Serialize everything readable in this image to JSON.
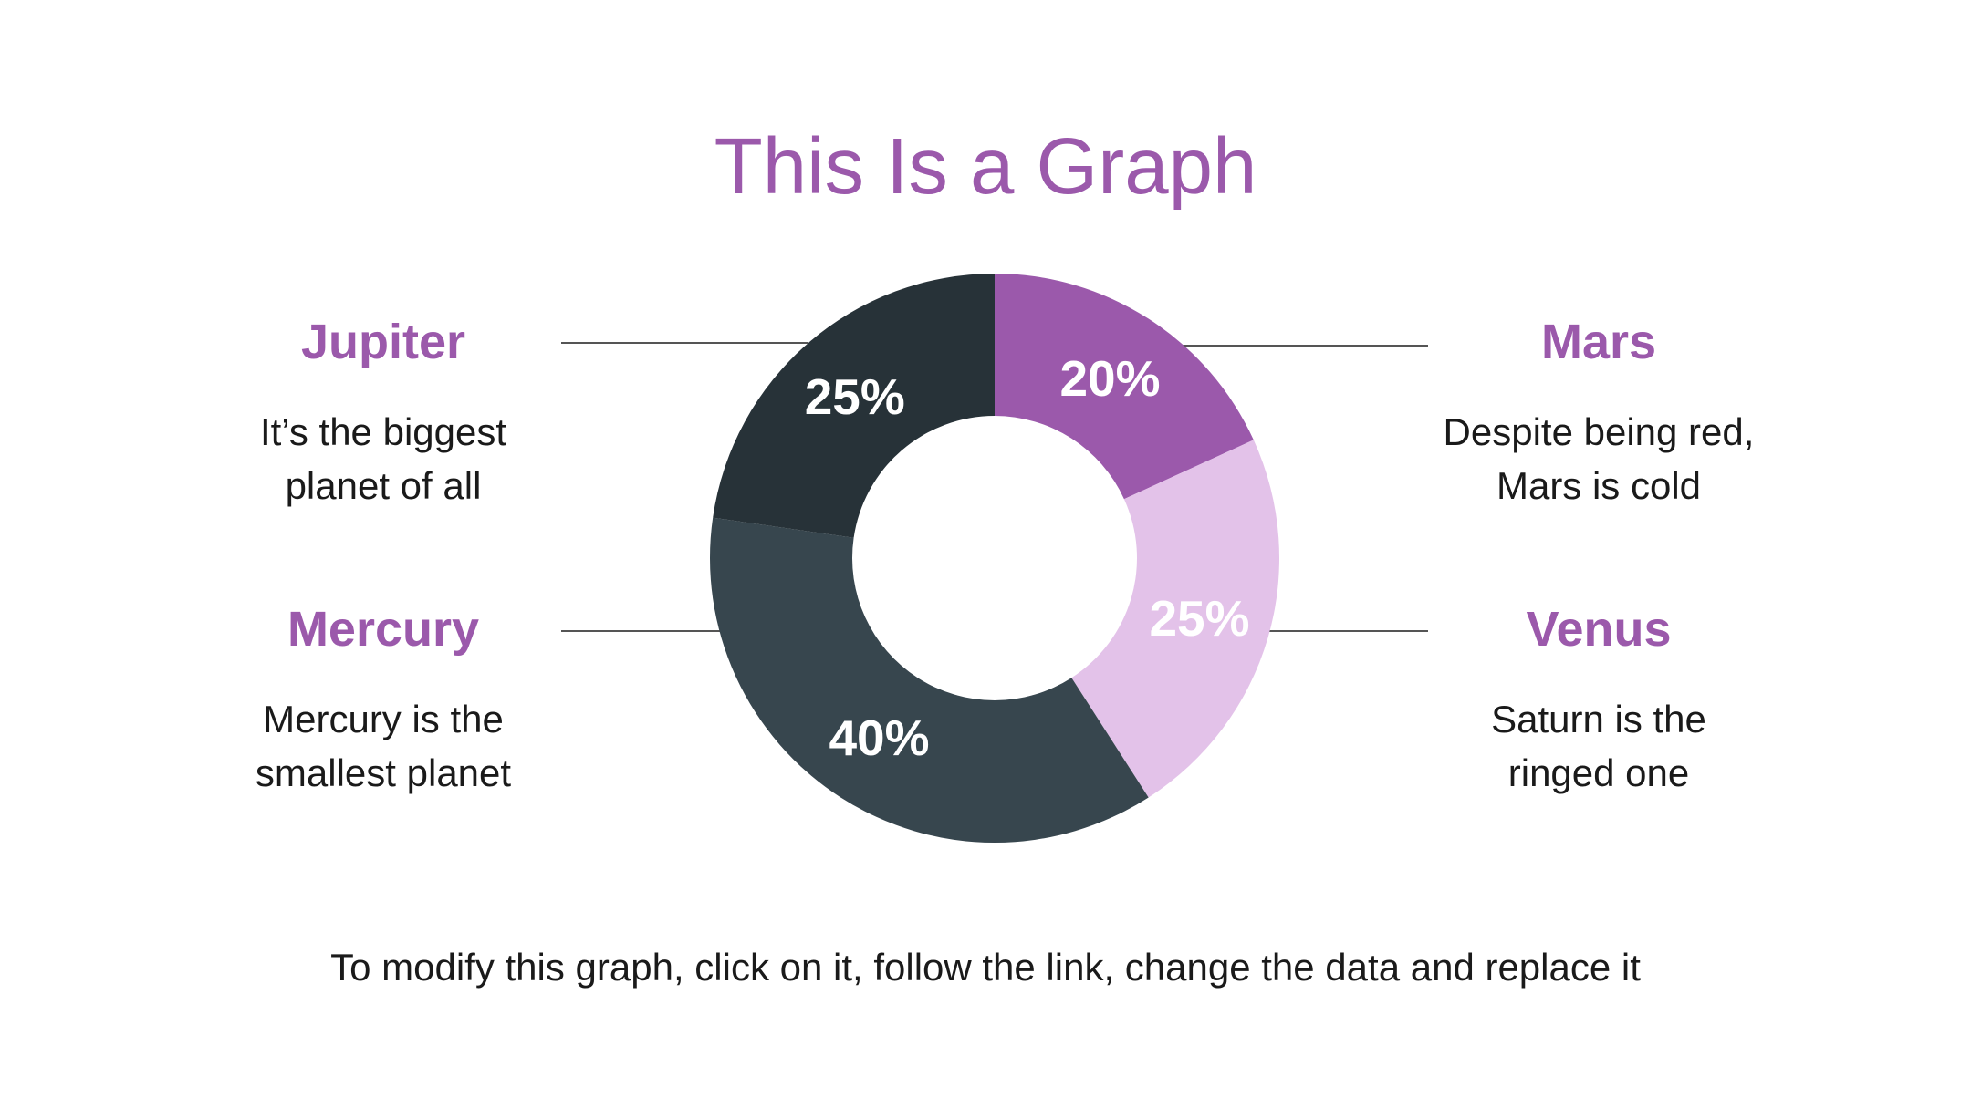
{
  "title": "This Is a Graph",
  "footer": "To modify this graph, click on it, follow the link, change the data and replace it",
  "planets": {
    "jupiter": {
      "name": "Jupiter",
      "desc_line1": "It’s the biggest",
      "desc_line2": "planet of all"
    },
    "mercury": {
      "name": "Mercury",
      "desc_line1": "Mercury is the",
      "desc_line2": "smallest planet"
    },
    "mars": {
      "name": "Mars",
      "desc_line1": "Despite being red,",
      "desc_line2": "Mars is cold"
    },
    "venus": {
      "name": "Venus",
      "desc_line1": "Saturn is the",
      "desc_line2": "ringed one"
    }
  },
  "colors": {
    "accent": "#9b59ab",
    "leader": "#555555"
  },
  "chart_data": {
    "type": "pie",
    "variant": "donut",
    "title": "This Is a Graph",
    "series": [
      {
        "name": "",
        "slices": [
          {
            "label": "Mars",
            "value": 20,
            "display": "20%",
            "color": "#9b59ab"
          },
          {
            "label": "Venus",
            "value": 25,
            "display": "25%",
            "color": "#e3c2e9"
          },
          {
            "label": "Mercury",
            "value": 40,
            "display": "40%",
            "color": "#37464e"
          },
          {
            "label": "Jupiter",
            "value": 25,
            "display": "25%",
            "color": "#273238"
          }
        ]
      }
    ],
    "start": "top",
    "direction": "clockwise"
  }
}
